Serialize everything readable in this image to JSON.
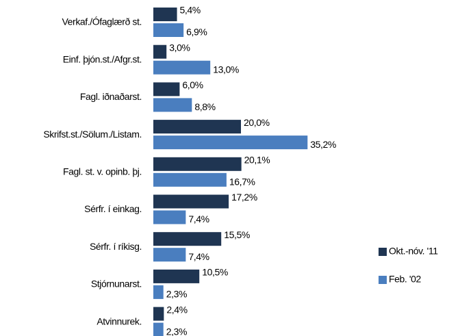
{
  "chart_data": {
    "type": "bar",
    "orientation": "horizontal",
    "categories": [
      "Verkaf./Ófaglærð st.",
      "Einf. þjón.st./Afgr.st.",
      "Fagl. iðnaðarst.",
      "Skrifst.st./Sölum./Listam.",
      "Fagl. st. v. opinb. þj.",
      "Sérfr. í einkag.",
      "Sérfr. í ríkisg.",
      "Stjórnunarst.",
      "Atvinnurek."
    ],
    "series": [
      {
        "name": "Okt.-nóv. '11",
        "color": "#1f3552",
        "values": [
          5.4,
          3.0,
          6.0,
          20.0,
          20.1,
          17.2,
          15.5,
          10.5,
          2.4
        ],
        "value_labels": [
          "5,4%",
          "3,0%",
          "6,0%",
          "20,0%",
          "20,1%",
          "17,2%",
          "15,5%",
          "10,5%",
          "2,4%"
        ]
      },
      {
        "name": "Feb. '02",
        "color": "#4a7ebf",
        "values": [
          6.9,
          13.0,
          8.8,
          35.2,
          16.7,
          7.4,
          7.4,
          2.3,
          2.3
        ],
        "value_labels": [
          "6,9%",
          "13,0%",
          "8,8%",
          "35,2%",
          "16,7%",
          "7,4%",
          "7,4%",
          "2,3%",
          "2,3%"
        ]
      }
    ],
    "legend": "right"
  }
}
